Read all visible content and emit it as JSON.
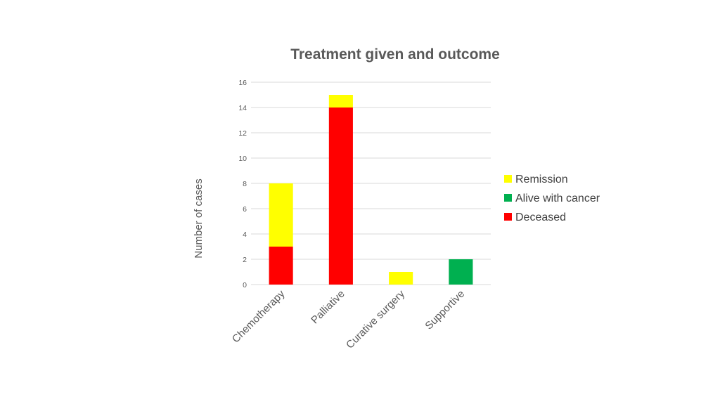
{
  "chart_data": {
    "type": "bar",
    "stacked": true,
    "title": "Treatment given and outcome",
    "xlabel": "",
    "ylabel": "Number of cases",
    "categories": [
      "Chemotherapy",
      "Palliative",
      "Curative surgery",
      "Supportive"
    ],
    "series": [
      {
        "name": "Deceased",
        "color": "#ff0000",
        "values": [
          3,
          14,
          0,
          0
        ]
      },
      {
        "name": "Alive with cancer",
        "color": "#00b050",
        "values": [
          0,
          0,
          0,
          2
        ]
      },
      {
        "name": "Remission",
        "color": "#ffff00",
        "values": [
          5,
          1,
          1,
          0
        ]
      }
    ],
    "ylim": [
      0,
      16
    ],
    "yticks": [
      0,
      2,
      4,
      6,
      8,
      10,
      12,
      14,
      16
    ],
    "grid": true,
    "legend_position": "right",
    "legend_order": [
      "Remission",
      "Alive with cancer",
      "Deceased"
    ]
  }
}
